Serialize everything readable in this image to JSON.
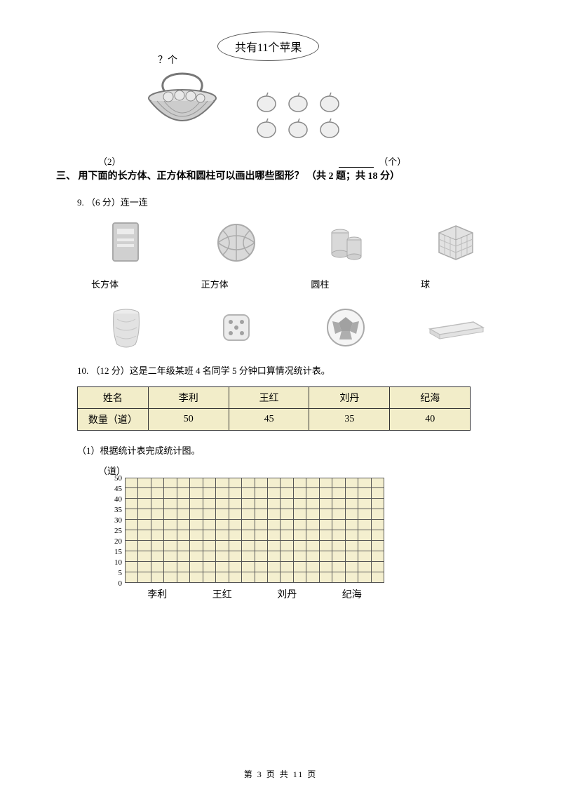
{
  "q2": {
    "bubble_text": "共有11个苹果",
    "qmark": "？个",
    "line_prefix": "（2）",
    "unit": "（个）"
  },
  "section3": {
    "title": "三、 用下面的长方体、正方体和圆柱可以画出哪些图形？ （共 2 题；共 18 分）"
  },
  "q9": {
    "heading": "9. （6 分）连一连",
    "labels": [
      "长方体",
      "正方体",
      "圆柱",
      "球"
    ]
  },
  "q10": {
    "heading": "10. （12 分）这是二年级某班 4 名同学 5 分钟口算情况统计表。",
    "table": {
      "row_headers": [
        "姓名",
        "数量（道）"
      ],
      "names": [
        "李利",
        "王红",
        "刘丹",
        "纪海"
      ],
      "values": [
        "50",
        "45",
        "35",
        "40"
      ],
      "header_bg": "#f2edc9",
      "border_color": "#333333"
    },
    "sub1": "（1）根据统计表完成统计图。",
    "chart": {
      "y_unit": "（道）",
      "y_ticks": [
        "50",
        "45",
        "40",
        "35",
        "30",
        "25",
        "20",
        "15",
        "10",
        "5",
        "0"
      ],
      "x_labels": [
        "李利",
        "王红",
        "刘丹",
        "纪海"
      ],
      "grid_bg": "#f4efcf",
      "grid_border": "#555555",
      "rows": 10,
      "cols": 20
    }
  },
  "footer": {
    "text": "第 3 页 共 11 页"
  },
  "colors": {
    "page_bg": "#ffffff",
    "text": "#000000"
  }
}
